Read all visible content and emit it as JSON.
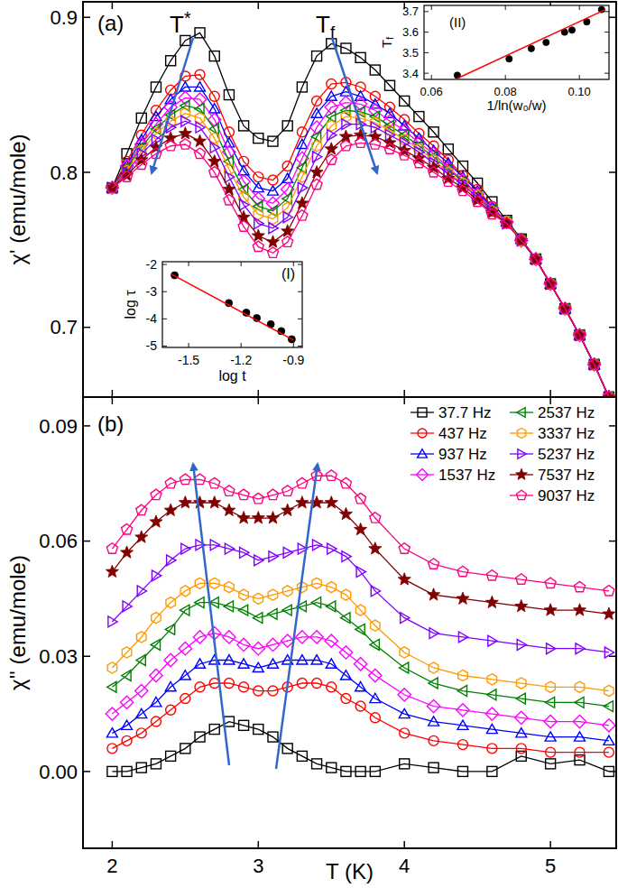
{
  "chart_data": [
    {
      "type": "line",
      "title": "(a)",
      "y_label": "χ' (emu/mole)",
      "annotations": [
        "T*",
        "Tf"
      ],
      "x": [
        2,
        2.1,
        2.2,
        2.3,
        2.4,
        2.5,
        2.6,
        2.7,
        2.8,
        2.9,
        3,
        3.1,
        3.2,
        3.3,
        3.4,
        3.5,
        3.6,
        3.7,
        3.8,
        3.9,
        4,
        4.1,
        4.2,
        4.3,
        4.4,
        4.5,
        4.6,
        4.7,
        4.8,
        4.9,
        5,
        5.1,
        5.2,
        5.3,
        5.4
      ],
      "xlim": [
        1.8,
        5.45
      ],
      "xticks": [
        2,
        3,
        4,
        5
      ],
      "ylim": [
        0.655,
        0.91
      ],
      "yticks": [
        0.7,
        0.8,
        0.9
      ],
      "tick_labels": "y",
      "series": [
        {
          "color": "#000000",
          "marker": "square",
          "line_style": "solid",
          "values": [
            0.79,
            0.812,
            0.835,
            0.855,
            0.872,
            0.885,
            0.89,
            0.875,
            0.85,
            0.83,
            0.822,
            0.82,
            0.83,
            0.855,
            0.875,
            0.883,
            0.88,
            0.874,
            0.866,
            0.856,
            0.846,
            0.836,
            0.826,
            0.815,
            0.804,
            0.793,
            0.781,
            0.769,
            0.757,
            0.744,
            0.728,
            0.712,
            0.695,
            0.676,
            0.655
          ]
        },
        {
          "color": "#ff0000",
          "marker": "circle",
          "line_style": "solid",
          "values": [
            0.79,
            0.807,
            0.824,
            0.84,
            0.853,
            0.862,
            0.863,
            0.849,
            0.826,
            0.807,
            0.797,
            0.795,
            0.804,
            0.826,
            0.846,
            0.857,
            0.858,
            0.855,
            0.849,
            0.842,
            0.834,
            0.825,
            0.817,
            0.808,
            0.798,
            0.789,
            0.778,
            0.768,
            0.757,
            0.744,
            0.728,
            0.712,
            0.695,
            0.676,
            0.655
          ]
        },
        {
          "color": "#0000ff",
          "marker": "triangle-up",
          "line_style": "solid",
          "values": [
            0.79,
            0.805,
            0.821,
            0.836,
            0.847,
            0.855,
            0.855,
            0.841,
            0.819,
            0.801,
            0.79,
            0.788,
            0.796,
            0.818,
            0.838,
            0.849,
            0.852,
            0.849,
            0.844,
            0.838,
            0.83,
            0.822,
            0.814,
            0.806,
            0.797,
            0.788,
            0.777,
            0.768,
            0.757,
            0.744,
            0.728,
            0.712,
            0.695,
            0.676,
            0.655
          ]
        },
        {
          "color": "#ff00ff",
          "marker": "diamond",
          "line_style": "solid",
          "values": [
            0.79,
            0.804,
            0.818,
            0.831,
            0.842,
            0.848,
            0.847,
            0.834,
            0.813,
            0.794,
            0.783,
            0.78,
            0.789,
            0.809,
            0.829,
            0.842,
            0.845,
            0.844,
            0.84,
            0.833,
            0.827,
            0.819,
            0.812,
            0.803,
            0.795,
            0.786,
            0.777,
            0.768,
            0.756,
            0.744,
            0.728,
            0.712,
            0.695,
            0.676,
            0.655
          ]
        },
        {
          "color": "#008000",
          "marker": "triangle-left",
          "line_style": "solid",
          "values": [
            0.79,
            0.803,
            0.816,
            0.828,
            0.837,
            0.843,
            0.841,
            0.828,
            0.807,
            0.789,
            0.778,
            0.775,
            0.783,
            0.803,
            0.823,
            0.836,
            0.84,
            0.839,
            0.836,
            0.83,
            0.824,
            0.817,
            0.81,
            0.802,
            0.794,
            0.785,
            0.776,
            0.768,
            0.756,
            0.744,
            0.728,
            0.712,
            0.695,
            0.676,
            0.655
          ]
        },
        {
          "color": "#ff9900",
          "marker": "hexagon",
          "line_style": "solid",
          "values": [
            0.79,
            0.801,
            0.814,
            0.825,
            0.833,
            0.838,
            0.835,
            0.822,
            0.802,
            0.784,
            0.773,
            0.77,
            0.777,
            0.797,
            0.817,
            0.83,
            0.836,
            0.835,
            0.832,
            0.827,
            0.821,
            0.815,
            0.808,
            0.8,
            0.793,
            0.785,
            0.775,
            0.768,
            0.756,
            0.744,
            0.728,
            0.712,
            0.695,
            0.676,
            0.655
          ]
        },
        {
          "color": "#8000ff",
          "marker": "triangle-right",
          "line_style": "solid",
          "values": [
            0.79,
            0.8,
            0.812,
            0.821,
            0.829,
            0.833,
            0.829,
            0.816,
            0.797,
            0.779,
            0.767,
            0.764,
            0.771,
            0.79,
            0.81,
            0.824,
            0.831,
            0.831,
            0.829,
            0.824,
            0.819,
            0.813,
            0.806,
            0.799,
            0.792,
            0.784,
            0.775,
            0.767,
            0.756,
            0.744,
            0.728,
            0.712,
            0.695,
            0.676,
            0.655
          ]
        },
        {
          "color": "#800000",
          "marker": "filled-star",
          "line_style": "solid",
          "values": [
            0.79,
            0.798,
            0.808,
            0.816,
            0.822,
            0.825,
            0.82,
            0.807,
            0.789,
            0.771,
            0.759,
            0.755,
            0.762,
            0.78,
            0.8,
            0.815,
            0.823,
            0.824,
            0.823,
            0.819,
            0.814,
            0.809,
            0.803,
            0.796,
            0.79,
            0.782,
            0.774,
            0.767,
            0.756,
            0.744,
            0.728,
            0.712,
            0.695,
            0.676,
            0.655
          ]
        },
        {
          "color": "#ff0080",
          "marker": "pentagon",
          "line_style": "solid",
          "values": [
            0.79,
            0.797,
            0.805,
            0.812,
            0.817,
            0.818,
            0.812,
            0.8,
            0.782,
            0.765,
            0.752,
            0.748,
            0.755,
            0.772,
            0.792,
            0.808,
            0.817,
            0.819,
            0.818,
            0.815,
            0.811,
            0.806,
            0.8,
            0.794,
            0.788,
            0.781,
            0.773,
            0.767,
            0.756,
            0.744,
            0.728,
            0.712,
            0.695,
            0.676,
            0.655
          ]
        }
      ]
    },
    {
      "type": "line",
      "title": "(b)",
      "x_label": "T (K)",
      "y_label": "χ'' (emu/mole)",
      "legend": "upper-right",
      "x": [
        2,
        2.1,
        2.2,
        2.3,
        2.4,
        2.5,
        2.6,
        2.7,
        2.8,
        2.9,
        3,
        3.1,
        3.2,
        3.3,
        3.4,
        3.5,
        3.6,
        3.7,
        3.8,
        4,
        4.2,
        4.4,
        4.6,
        4.8,
        5,
        5.2,
        5.4
      ],
      "xlim": [
        1.8,
        5.45
      ],
      "xticks": [
        2,
        3,
        4,
        5
      ],
      "ylim": [
        -0.02,
        0.0975
      ],
      "yticks": [
        {
          "value": 0,
          "label": "0.00"
        },
        {
          "value": 0.03,
          "label": "0.03"
        },
        {
          "value": 0.06,
          "label": "0.06"
        },
        {
          "value": 0.09,
          "label": "0.09"
        }
      ],
      "series": [
        {
          "name": "37.7 Hz",
          "color": "#000000",
          "marker": "square",
          "line_style": "solid",
          "values": [
            0.0,
            0.0,
            0.001,
            0.002,
            0.004,
            0.006,
            0.009,
            0.011,
            0.013,
            0.012,
            0.011,
            0.009,
            0.006,
            0.004,
            0.002,
            0.001,
            0.0,
            0.0,
            0.0,
            0.002,
            0.001,
            0.0,
            0.0,
            0.004,
            0.002,
            0.003,
            0.0
          ]
        },
        {
          "name": "437 Hz",
          "color": "#ff0000",
          "marker": "circle",
          "line_style": "solid",
          "values": [
            0.006,
            0.008,
            0.01,
            0.013,
            0.016,
            0.019,
            0.022,
            0.023,
            0.023,
            0.022,
            0.021,
            0.021,
            0.022,
            0.023,
            0.023,
            0.022,
            0.019,
            0.017,
            0.014,
            0.01,
            0.008,
            0.007,
            0.006,
            0.006,
            0.005,
            0.005,
            0.005
          ]
        },
        {
          "name": "937 Hz",
          "color": "#0000ff",
          "marker": "triangle-up",
          "line_style": "solid",
          "values": [
            0.01,
            0.012,
            0.015,
            0.018,
            0.022,
            0.025,
            0.028,
            0.029,
            0.029,
            0.028,
            0.027,
            0.028,
            0.029,
            0.029,
            0.029,
            0.028,
            0.025,
            0.022,
            0.019,
            0.015,
            0.013,
            0.012,
            0.011,
            0.01,
            0.009,
            0.009,
            0.008
          ]
        },
        {
          "name": "1537 Hz",
          "color": "#ff00ff",
          "marker": "diamond",
          "line_style": "solid",
          "values": [
            0.015,
            0.018,
            0.021,
            0.025,
            0.029,
            0.032,
            0.035,
            0.036,
            0.035,
            0.033,
            0.032,
            0.033,
            0.034,
            0.035,
            0.035,
            0.034,
            0.031,
            0.028,
            0.025,
            0.02,
            0.017,
            0.016,
            0.015,
            0.014,
            0.013,
            0.013,
            0.012
          ]
        },
        {
          "name": "2537 Hz",
          "color": "#008000",
          "marker": "triangle-left",
          "line_style": "solid",
          "values": [
            0.022,
            0.025,
            0.029,
            0.033,
            0.037,
            0.042,
            0.044,
            0.044,
            0.043,
            0.042,
            0.04,
            0.041,
            0.042,
            0.043,
            0.044,
            0.043,
            0.04,
            0.037,
            0.033,
            0.027,
            0.023,
            0.021,
            0.02,
            0.019,
            0.018,
            0.018,
            0.017
          ]
        },
        {
          "name": "3337 Hz",
          "color": "#ff9900",
          "marker": "hexagon",
          "line_style": "solid",
          "values": [
            0.027,
            0.031,
            0.035,
            0.04,
            0.044,
            0.047,
            0.049,
            0.049,
            0.048,
            0.046,
            0.045,
            0.046,
            0.047,
            0.048,
            0.049,
            0.048,
            0.046,
            0.042,
            0.038,
            0.031,
            0.027,
            0.025,
            0.024,
            0.023,
            0.022,
            0.022,
            0.021
          ]
        },
        {
          "name": "5237 Hz",
          "color": "#8000ff",
          "marker": "triangle-right",
          "line_style": "solid",
          "values": [
            0.039,
            0.043,
            0.047,
            0.051,
            0.055,
            0.058,
            0.059,
            0.059,
            0.058,
            0.057,
            0.055,
            0.056,
            0.057,
            0.058,
            0.059,
            0.058,
            0.056,
            0.052,
            0.047,
            0.04,
            0.036,
            0.035,
            0.034,
            0.033,
            0.032,
            0.032,
            0.031
          ]
        },
        {
          "name": "7537 Hz",
          "color": "#800000",
          "marker": "filled-star",
          "line_style": "solid",
          "values": [
            0.052,
            0.057,
            0.061,
            0.065,
            0.068,
            0.07,
            0.07,
            0.07,
            0.068,
            0.066,
            0.066,
            0.066,
            0.068,
            0.07,
            0.07,
            0.07,
            0.067,
            0.063,
            0.058,
            0.05,
            0.046,
            0.045,
            0.044,
            0.043,
            0.042,
            0.042,
            0.041
          ]
        },
        {
          "name": "9037 Hz",
          "color": "#ff0080",
          "marker": "pentagon",
          "line_style": "solid",
          "values": [
            0.058,
            0.063,
            0.068,
            0.072,
            0.075,
            0.076,
            0.076,
            0.075,
            0.073,
            0.072,
            0.071,
            0.072,
            0.073,
            0.075,
            0.077,
            0.077,
            0.075,
            0.071,
            0.066,
            0.058,
            0.054,
            0.052,
            0.051,
            0.05,
            0.049,
            0.048,
            0.047
          ]
        }
      ]
    },
    {
      "type": "scatter",
      "title": "(I)",
      "x_label": "log t",
      "y_label": "log τ",
      "xlim": [
        -1.65,
        -0.85
      ],
      "xticks": [
        -1.5,
        -1.2,
        -0.9
      ],
      "ylim": [
        -5.05,
        -1.9
      ],
      "yticks": [
        -2,
        -3,
        -4,
        -5
      ],
      "series": [
        {
          "type": "scatter",
          "color": "#000000",
          "marker": "filled-circle",
          "x": [
            -1.58,
            -1.27,
            -1.17,
            -1.11,
            -1.03,
            -0.97,
            -0.91
          ],
          "values": [
            -2.4,
            -3.42,
            -3.77,
            -3.97,
            -4.2,
            -4.45,
            -4.75
          ]
        },
        {
          "type": "line",
          "color": "#ff0000",
          "line_style": "solid",
          "x": [
            -1.6,
            -0.9
          ],
          "values": [
            -2.35,
            -4.78
          ]
        }
      ]
    },
    {
      "type": "scatter",
      "title": "(II)",
      "x_label": "1/ln(w₀/w)",
      "y_label": "Tf",
      "xlim": [
        0.058,
        0.108
      ],
      "xticks": [
        0.06,
        0.08,
        {
          "value": 0.1,
          "label": "0.10"
        }
      ],
      "ylim": [
        3.37,
        3.73
      ],
      "yticks": [
        3.4,
        3.5,
        3.6,
        3.7
      ],
      "series": [
        {
          "type": "scatter",
          "color": "#000000",
          "marker": "filled-circle",
          "x": [
            0.067,
            0.081,
            0.087,
            0.091,
            0.096,
            0.098,
            0.102,
            0.106
          ],
          "values": [
            3.39,
            3.47,
            3.52,
            3.55,
            3.6,
            3.61,
            3.65,
            3.71
          ]
        },
        {
          "type": "line",
          "color": "#ff0000",
          "line_style": "solid",
          "x": [
            0.067,
            0.107
          ],
          "values": [
            3.375,
            3.71
          ]
        }
      ]
    }
  ]
}
